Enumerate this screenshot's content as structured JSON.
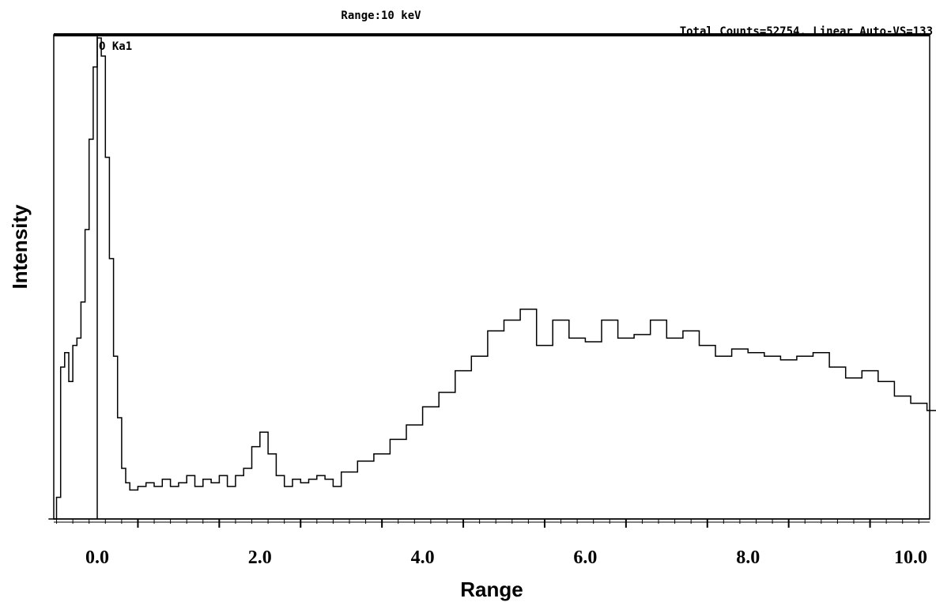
{
  "chart_data": {
    "type": "line",
    "header": {
      "range_label": "Range:10  keV",
      "status_label": "Total Counts=52754,  Linear   Auto-VS=133"
    },
    "xlabel": "Range",
    "ylabel": "Intensity",
    "x_tick_labels": [
      "0.0",
      "2.0",
      "4.0",
      "6.0",
      "8.0",
      "10.0"
    ],
    "x_tick_values": [
      0,
      2,
      4,
      6,
      8,
      10
    ],
    "xlim": [
      -1.0,
      10.4
    ],
    "ylim": [
      0,
      133
    ],
    "grid": false,
    "legend": "none",
    "annotations": [
      {
        "label": "O Ka1",
        "x": 0.0
      }
    ],
    "series": [
      {
        "x": [
          -0.6,
          -0.5,
          -0.45,
          -0.4,
          -0.35,
          -0.3,
          -0.25,
          -0.2,
          -0.15,
          -0.1,
          -0.05,
          0.0,
          0.05,
          0.1,
          0.15,
          0.2,
          0.25,
          0.3,
          0.35,
          0.4,
          0.5,
          0.6,
          0.7,
          0.8,
          0.9,
          1.0,
          1.1,
          1.2,
          1.3,
          1.4,
          1.5,
          1.6,
          1.7,
          1.8,
          1.9,
          2.0,
          2.1,
          2.2,
          2.3,
          2.4,
          2.5,
          2.6,
          2.7,
          2.8,
          2.9,
          3.0,
          3.2,
          3.4,
          3.6,
          3.8,
          4.0,
          4.2,
          4.4,
          4.6,
          4.8,
          5.0,
          5.2,
          5.4,
          5.6,
          5.8,
          6.0,
          6.2,
          6.4,
          6.6,
          6.8,
          7.0,
          7.2,
          7.4,
          7.6,
          7.8,
          8.0,
          8.2,
          8.4,
          8.6,
          8.8,
          9.0,
          9.2,
          9.4,
          9.6,
          9.8,
          10.0,
          10.2,
          10.4
        ],
        "y": [
          0,
          6,
          42,
          46,
          38,
          48,
          50,
          60,
          80,
          105,
          125,
          133,
          128,
          100,
          72,
          45,
          28,
          14,
          10,
          8,
          9,
          10,
          9,
          11,
          9,
          10,
          12,
          9,
          11,
          10,
          12,
          9,
          12,
          14,
          20,
          24,
          18,
          12,
          9,
          11,
          10,
          11,
          12,
          11,
          9,
          13,
          16,
          18,
          22,
          26,
          31,
          35,
          41,
          45,
          52,
          55,
          58,
          48,
          55,
          50,
          49,
          55,
          50,
          51,
          55,
          50,
          52,
          48,
          45,
          47,
          46,
          45,
          44,
          45,
          46,
          42,
          39,
          41,
          38,
          34,
          32,
          30,
          28
        ]
      }
    ]
  }
}
